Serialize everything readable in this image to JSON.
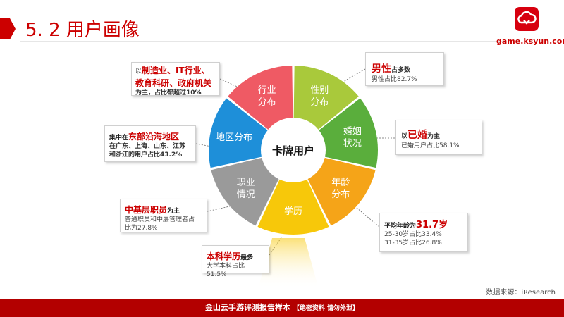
{
  "page": {
    "title": "5. 2 用户画像",
    "logo_url": "game.ksyun.com",
    "source": "数据来源：iResearch",
    "footer_main": "金山云手游评测报告样本",
    "footer_tag": "【绝密资料 请勿外泄】",
    "colors": {
      "brand_red": "#cc0000",
      "footer": "#b30000"
    }
  },
  "wheel": {
    "center_label": "卡牌用户",
    "segments": [
      {
        "id": "gender",
        "line1": "性别",
        "line2": "分布",
        "color": "#a9c93b"
      },
      {
        "id": "marriage",
        "line1": "婚姻",
        "line2": "状况",
        "color": "#5aae3c"
      },
      {
        "id": "age",
        "line1": "年龄",
        "line2": "分布",
        "color": "#f5a418"
      },
      {
        "id": "education",
        "line1": "学历",
        "line2": "",
        "color": "#f7c80a"
      },
      {
        "id": "occupation",
        "line1": "职业",
        "line2": "情况",
        "color": "#9a9a9a"
      },
      {
        "id": "region",
        "line1": "地区分布",
        "line2": "",
        "color": "#1e8fd9"
      },
      {
        "id": "industry",
        "line1": "行业",
        "line2": "分布",
        "color": "#ef5a64"
      }
    ]
  },
  "callouts": {
    "industry": {
      "prefix": "以",
      "line1": "制造业、IT行业、",
      "line2": "教育科研、政府机关",
      "line3": "为主，占比都超过10%"
    },
    "gender": {
      "highlight": "男性",
      "suffix": "占多数",
      "detail": "男性占比82.7%"
    },
    "marriage": {
      "prefix": "以",
      "highlight": "已婚",
      "suffix": "为主",
      "detail": "已婚用户占比58.1%"
    },
    "region": {
      "prefix": "集中在",
      "highlight": "东部沿海地区",
      "detail1": "在广东、上海、山东、江苏",
      "detail2": "和浙江的用户占比43.2%"
    },
    "occupation": {
      "highlight": "中基层职员",
      "suffix": "为主",
      "detail1": "普通职员和中层管理者占",
      "detail2": "比为27.8%"
    },
    "age": {
      "prefix": "平均年龄为",
      "highlight": "31.7岁",
      "detail1": "25-30岁占比33.4%",
      "detail2": "31-35岁占比26.8%"
    },
    "education": {
      "highlight": "本科学历",
      "suffix": "最多",
      "detail": "大学本科占比51.5%"
    }
  }
}
